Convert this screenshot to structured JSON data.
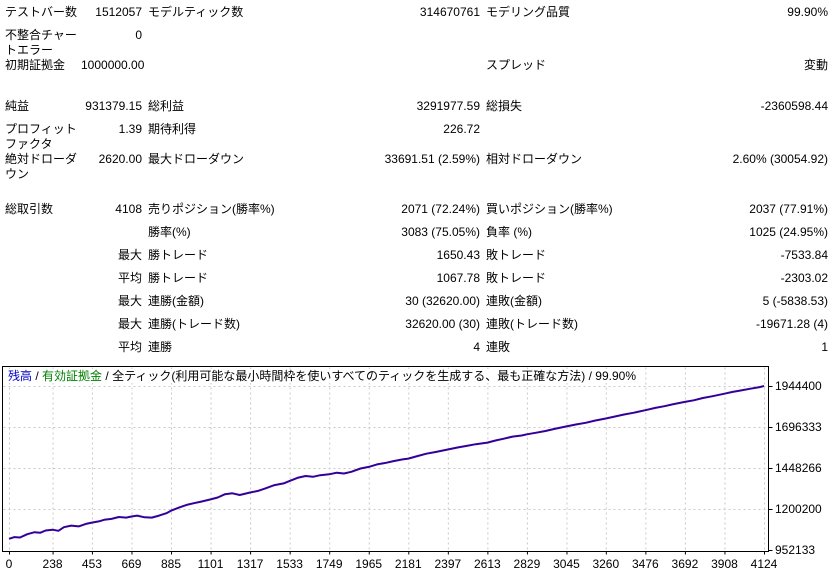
{
  "report": {
    "rows": [
      {
        "c": [
          "テストバー数",
          "1512057",
          "モデルティック数",
          "314670761",
          "モデリング品質",
          "99.90%"
        ]
      },
      {
        "c": [
          "不整合チャートエラー",
          "0",
          "",
          "",
          "",
          ""
        ]
      },
      {
        "c": [
          "初期証拠金",
          "1000000.00",
          "",
          "",
          "スプレッド",
          "変動"
        ]
      },
      {
        "c": [
          "純益",
          "931379.15",
          "総利益",
          "3291977.59",
          "総損失",
          "-2360598.44"
        ]
      },
      {
        "c": [
          "プロフィットファクタ",
          "1.39",
          "期待利得",
          "226.72",
          "",
          ""
        ]
      },
      {
        "c": [
          "絶対ドローダウン",
          "2620.00",
          "最大ドローダウン",
          "33691.51 (2.59%)",
          "相対ドローダウン",
          "2.60% (30054.92)"
        ]
      },
      {
        "c": [
          "総取引数",
          "4108",
          "売りポジション(勝率%)",
          "2071 (72.24%)",
          "買いポジション(勝率%)",
          "2037 (77.91%)"
        ]
      },
      {
        "c": [
          "",
          "",
          "勝率(%)",
          "3083 (75.05%)",
          "負率 (%)",
          "1025 (24.95%)"
        ]
      },
      {
        "c": [
          "",
          "最大",
          "勝トレード",
          "1650.43",
          "敗トレード",
          "-7533.84"
        ]
      },
      {
        "c": [
          "",
          "平均",
          "勝トレード",
          "1067.78",
          "敗トレード",
          "-2303.02"
        ]
      },
      {
        "c": [
          "",
          "最大",
          "連勝(金額)",
          "30 (32620.00)",
          "連敗(金額)",
          "5 (-5838.53)"
        ]
      },
      {
        "c": [
          "",
          "最大",
          "連勝(トレード数)",
          "32620.00 (30)",
          "連敗(トレード数)",
          "-19671.28 (4)"
        ]
      },
      {
        "c": [
          "",
          "平均",
          "連勝",
          "4",
          "連敗",
          "1"
        ]
      }
    ]
  },
  "chart": {
    "legend": {
      "balance": "残高",
      "sep": " / ",
      "equity": "有効証拠金",
      "model": "全ティック(利用可能な最小時間枠を使いすべてのティックを生成する、最も正確な方法) / 99.90%"
    },
    "colors": {
      "balance": "#0000C8",
      "equity": "#008000",
      "line": "#330099",
      "grid": "#C9C9C9",
      "border": "#000000"
    }
  },
  "chart_data": {
    "type": "line",
    "title": "残高 / 有効証拠金 / 全ティック(利用可能な最小時間枠を使いすべてのティックを生成する、最も正確な方法) / 99.90%",
    "legend_position": "top-left",
    "grid": true,
    "xlim": [
      0,
      4124
    ],
    "ylim": [
      952133,
      1944400
    ],
    "x_ticks": [
      0,
      238,
      453,
      669,
      885,
      1101,
      1317,
      1533,
      1749,
      1965,
      2181,
      2397,
      2613,
      2829,
      3045,
      3260,
      3476,
      3692,
      3908,
      4124
    ],
    "y_ticks": [
      952133,
      1200200,
      1448266,
      1696333,
      1944400
    ],
    "series": [
      {
        "name": "残高",
        "color": "#330099",
        "points": [
          [
            0,
            1020000
          ],
          [
            30,
            1030000
          ],
          [
            60,
            1028000
          ],
          [
            100,
            1048000
          ],
          [
            140,
            1060000
          ],
          [
            170,
            1056000
          ],
          [
            200,
            1070000
          ],
          [
            238,
            1075000
          ],
          [
            270,
            1068000
          ],
          [
            300,
            1090000
          ],
          [
            340,
            1100000
          ],
          [
            380,
            1095000
          ],
          [
            420,
            1110000
          ],
          [
            453,
            1118000
          ],
          [
            490,
            1125000
          ],
          [
            520,
            1135000
          ],
          [
            560,
            1140000
          ],
          [
            600,
            1152000
          ],
          [
            640,
            1148000
          ],
          [
            669,
            1155000
          ],
          [
            700,
            1160000
          ],
          [
            740,
            1150000
          ],
          [
            780,
            1148000
          ],
          [
            820,
            1160000
          ],
          [
            860,
            1175000
          ],
          [
            885,
            1190000
          ],
          [
            930,
            1210000
          ],
          [
            970,
            1225000
          ],
          [
            1010,
            1235000
          ],
          [
            1050,
            1245000
          ],
          [
            1101,
            1258000
          ],
          [
            1140,
            1270000
          ],
          [
            1180,
            1290000
          ],
          [
            1220,
            1295000
          ],
          [
            1260,
            1285000
          ],
          [
            1317,
            1300000
          ],
          [
            1360,
            1310000
          ],
          [
            1400,
            1325000
          ],
          [
            1450,
            1345000
          ],
          [
            1500,
            1355000
          ],
          [
            1533,
            1370000
          ],
          [
            1580,
            1390000
          ],
          [
            1620,
            1400000
          ],
          [
            1660,
            1395000
          ],
          [
            1700,
            1405000
          ],
          [
            1749,
            1410000
          ],
          [
            1790,
            1420000
          ],
          [
            1830,
            1415000
          ],
          [
            1870,
            1425000
          ],
          [
            1920,
            1445000
          ],
          [
            1965,
            1455000
          ],
          [
            2010,
            1470000
          ],
          [
            2060,
            1480000
          ],
          [
            2100,
            1490000
          ],
          [
            2150,
            1500000
          ],
          [
            2181,
            1505000
          ],
          [
            2230,
            1520000
          ],
          [
            2280,
            1535000
          ],
          [
            2330,
            1545000
          ],
          [
            2397,
            1560000
          ],
          [
            2450,
            1572000
          ],
          [
            2500,
            1582000
          ],
          [
            2550,
            1592000
          ],
          [
            2613,
            1602000
          ],
          [
            2660,
            1615000
          ],
          [
            2700,
            1625000
          ],
          [
            2750,
            1638000
          ],
          [
            2800,
            1645000
          ],
          [
            2829,
            1652000
          ],
          [
            2880,
            1662000
          ],
          [
            2930,
            1672000
          ],
          [
            2980,
            1685000
          ],
          [
            3045,
            1700000
          ],
          [
            3100,
            1712000
          ],
          [
            3150,
            1722000
          ],
          [
            3200,
            1735000
          ],
          [
            3260,
            1748000
          ],
          [
            3310,
            1760000
          ],
          [
            3360,
            1772000
          ],
          [
            3410,
            1782000
          ],
          [
            3476,
            1798000
          ],
          [
            3530,
            1812000
          ],
          [
            3580,
            1822000
          ],
          [
            3630,
            1835000
          ],
          [
            3692,
            1848000
          ],
          [
            3740,
            1858000
          ],
          [
            3790,
            1872000
          ],
          [
            3840,
            1882000
          ],
          [
            3908,
            1898000
          ],
          [
            3950,
            1908000
          ],
          [
            4000,
            1918000
          ],
          [
            4050,
            1928000
          ],
          [
            4100,
            1938000
          ],
          [
            4124,
            1944400
          ]
        ]
      }
    ]
  }
}
